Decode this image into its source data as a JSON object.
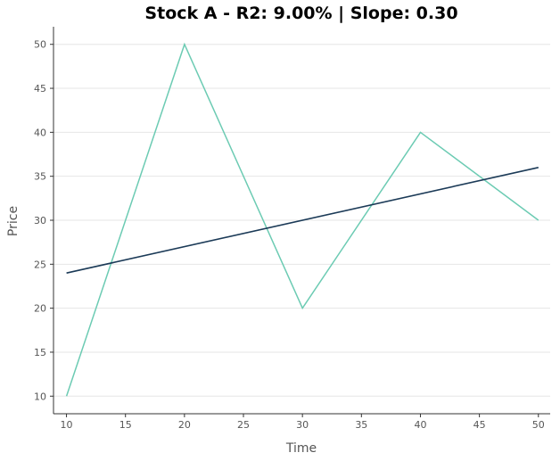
{
  "chart_data": {
    "type": "line",
    "title": "Stock A - R2: 9.00% | Slope: 0.30",
    "xlabel": "Time",
    "ylabel": "Price",
    "xlim": [
      8.9,
      51
    ],
    "ylim": [
      8,
      52
    ],
    "x_ticks": [
      10,
      15,
      20,
      25,
      30,
      35,
      40,
      45,
      50
    ],
    "y_ticks": [
      10,
      15,
      20,
      25,
      30,
      35,
      40,
      45,
      50
    ],
    "grid": "horizontal",
    "legend": "none",
    "series": [
      {
        "kind": "data",
        "color": "#6ccbb3",
        "x": [
          10,
          20,
          30,
          40,
          50
        ],
        "y": [
          10,
          50,
          20,
          40,
          30
        ]
      },
      {
        "kind": "trend",
        "color": "#1b3a57",
        "x": [
          10,
          50
        ],
        "y": [
          24,
          36
        ]
      }
    ]
  }
}
